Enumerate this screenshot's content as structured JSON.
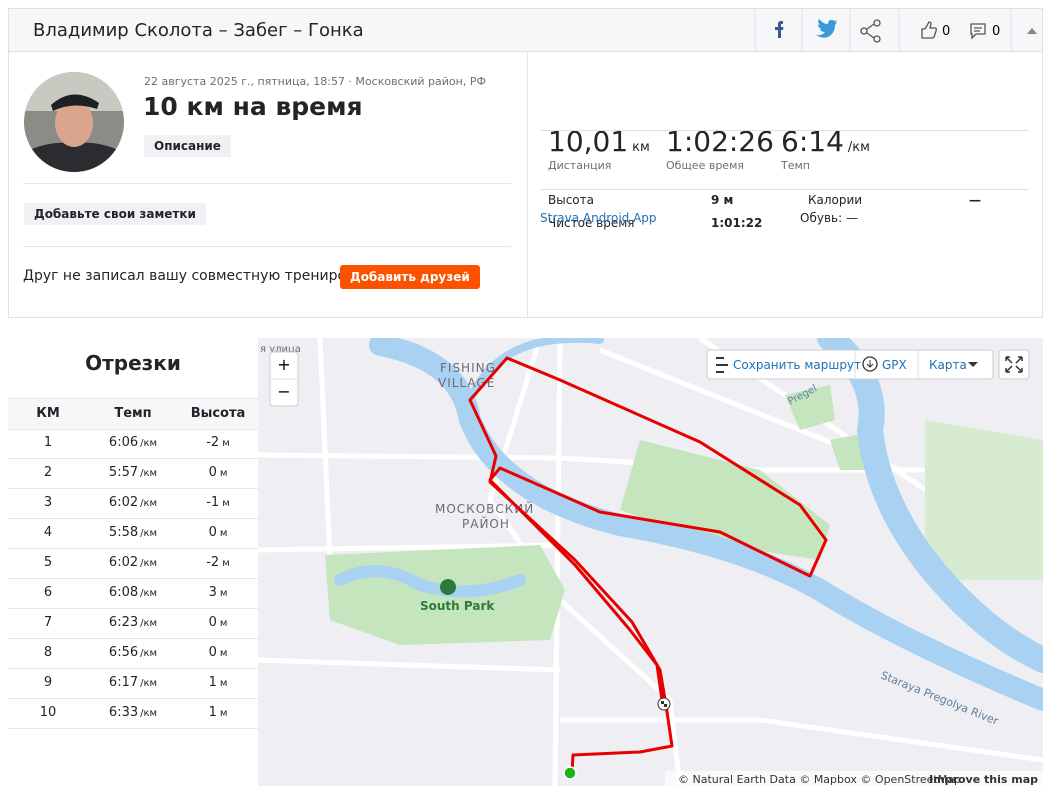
{
  "header": {
    "title": "Владимир Сколота – Забег – Гонка",
    "likes": "0",
    "comments": "0"
  },
  "activity": {
    "date": "22 августа 2025 г., пятница, 18:57 · Московский район, РФ",
    "title": "10 км на время",
    "description_button": "Описание",
    "notes_button": "Добавьте свои заметки",
    "friend_prompt": "Друг не записал вашу совместную тренировку?",
    "add_friends_button": "Добавить друзей"
  },
  "stats": [
    {
      "value": "10,01",
      "unit": "км",
      "label": "Дистанция"
    },
    {
      "value": "1:02:26",
      "label": "Общее время"
    },
    {
      "value": "6:14",
      "unit": "/км",
      "label": "Темп"
    }
  ],
  "details": [
    {
      "label": "Высота",
      "value": "9 м"
    },
    {
      "label": "Калории",
      "value": "—"
    },
    {
      "label": "Чистое время",
      "value": "1:01:22"
    }
  ],
  "device": "Strava Android App",
  "shoes": "Обувь: —",
  "splits": {
    "title": "Отрезки",
    "columns": [
      "КМ",
      "Темп",
      "Высота"
    ],
    "pace_unit": "/км",
    "elev_unit": "м",
    "rows": [
      {
        "km": 1,
        "pace": "6:06",
        "elev": -2
      },
      {
        "km": 2,
        "pace": "5:57",
        "elev": 0
      },
      {
        "km": 3,
        "pace": "6:02",
        "elev": -1
      },
      {
        "km": 4,
        "pace": "5:58",
        "elev": 0
      },
      {
        "km": 5,
        "pace": "6:02",
        "elev": -2
      },
      {
        "km": 6,
        "pace": "6:08",
        "elev": 3
      },
      {
        "km": 7,
        "pace": "6:23",
        "elev": 0
      },
      {
        "km": 8,
        "pace": "6:56",
        "elev": 0
      },
      {
        "km": 9,
        "pace": "6:17",
        "elev": 1
      },
      {
        "km": 10,
        "pace": "6:33",
        "elev": 1
      }
    ]
  },
  "map": {
    "save_route": "Сохранить маршрут",
    "gpx": "GPX",
    "map_type": "Карта",
    "zoom_in": "+",
    "zoom_out": "−",
    "labels": [
      "FISHING",
      "VILLAGE",
      "МОСКОВСКИЙ",
      "РАЙОН",
      "South Park",
      "Staraya Pregolya River",
      "я улица",
      "Pregel"
    ],
    "attribution": "© Natural Earth Data © Mapbox © OpenStreetMap",
    "improve": "Improve this map"
  }
}
